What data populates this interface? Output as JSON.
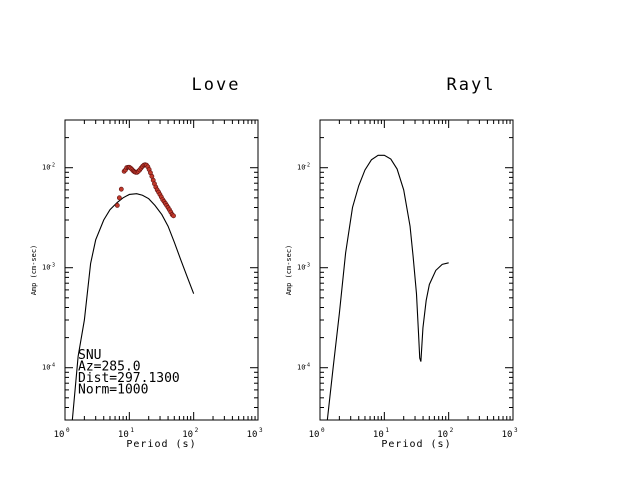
{
  "chart_data": [
    {
      "type": "line",
      "title": "Love",
      "xlabel": "Period (s)",
      "ylabel": "Amp (cm-sec)",
      "x_scale": "log",
      "y_scale": "log",
      "xlim": [
        1,
        1000
      ],
      "ylim": [
        3e-05,
        0.03
      ],
      "x_ticks": [
        {
          "base": "10",
          "exp": "0"
        },
        {
          "base": "10",
          "exp": "1"
        },
        {
          "base": "10",
          "exp": "2"
        },
        {
          "base": "10",
          "exp": "3"
        }
      ],
      "y_ticks": [
        {
          "base": "10",
          "exp": "-4",
          "value": 0.0001
        },
        {
          "base": "10",
          "exp": "-3",
          "value": 0.001
        },
        {
          "base": "10",
          "exp": "-2",
          "value": 0.01
        }
      ],
      "series": [
        {
          "kind": "line",
          "color": "#000000",
          "x": [
            1.1,
            1.3,
            1.6,
            2.0,
            2.5,
            3.0,
            4.0,
            5.0,
            6.5,
            8.0,
            10.0,
            13.0,
            16.0,
            20.0,
            25.0,
            32.0,
            40.0,
            50.0,
            63.0,
            80.0,
            100.0
          ],
          "y": [
            3e-05,
            3e-05,
            0.00013,
            0.0003,
            0.0011,
            0.0019,
            0.003,
            0.0038,
            0.0045,
            0.005,
            0.0054,
            0.0055,
            0.0053,
            0.0049,
            0.0042,
            0.0034,
            0.0026,
            0.0018,
            0.0012,
            0.0008,
            0.00055
          ]
        },
        {
          "kind": "scatter",
          "color": "#c0392b",
          "x": [
            6.5,
            7.0,
            7.5,
            8.3,
            8.7,
            9.1,
            9.6,
            10.0,
            10.5,
            11.0,
            11.5,
            12.0,
            12.6,
            13.2,
            13.8,
            14.5,
            15.2,
            16.0,
            16.8,
            17.6,
            18.5,
            19.4,
            20.3,
            21.3,
            22.4,
            23.5,
            24.6,
            25.8,
            27.1,
            28.5,
            29.9,
            31.4,
            33.0,
            34.6,
            36.3,
            38.1,
            40.0,
            42.0,
            44.1,
            46.3,
            48.6
          ],
          "y": [
            0.0042,
            0.005,
            0.0061,
            0.0092,
            0.0095,
            0.01,
            0.0101,
            0.0101,
            0.0099,
            0.0096,
            0.0093,
            0.0091,
            0.009,
            0.009,
            0.0092,
            0.0095,
            0.0099,
            0.0103,
            0.0106,
            0.0107,
            0.0106,
            0.0102,
            0.0096,
            0.0089,
            0.0082,
            0.0075,
            0.0069,
            0.0064,
            0.006,
            0.0057,
            0.0054,
            0.0051,
            0.0048,
            0.0046,
            0.0044,
            0.0042,
            0.004,
            0.0038,
            0.0036,
            0.0034,
            0.0033
          ]
        }
      ],
      "annotations": [
        "SNU",
        "Az=285.0",
        "Dist=297.1300",
        "Norm=1000"
      ]
    },
    {
      "type": "line",
      "title": "Rayl",
      "xlabel": "Period (s)",
      "ylabel": "Amp (cm-sec)",
      "x_scale": "log",
      "y_scale": "log",
      "xlim": [
        1,
        1000
      ],
      "ylim": [
        3e-05,
        0.03
      ],
      "x_ticks": [
        {
          "base": "10",
          "exp": "0"
        },
        {
          "base": "10",
          "exp": "1"
        },
        {
          "base": "10",
          "exp": "2"
        },
        {
          "base": "10",
          "exp": "3"
        }
      ],
      "y_ticks": [
        {
          "base": "10",
          "exp": "-4",
          "value": 0.0001
        },
        {
          "base": "10",
          "exp": "-3",
          "value": 0.001
        },
        {
          "base": "10",
          "exp": "-2",
          "value": 0.01
        }
      ],
      "series": [
        {
          "kind": "line",
          "color": "#000000",
          "x": [
            1.1,
            1.3,
            1.6,
            2.0,
            2.5,
            3.2,
            4.0,
            5.0,
            6.3,
            8.0,
            10.0,
            12.6,
            15.8,
            20.0,
            25.1,
            28.0,
            31.6,
            34.0,
            35.5,
            37.0,
            39.8,
            44.7,
            50.1,
            63.1,
            79.4,
            100.0
          ],
          "y": [
            3e-05,
            3e-05,
            0.0001,
            0.00035,
            0.0014,
            0.004,
            0.0066,
            0.0095,
            0.012,
            0.0133,
            0.0133,
            0.0122,
            0.0097,
            0.006,
            0.0026,
            0.0013,
            0.00055,
            0.00022,
            0.000125,
            0.000115,
            0.00025,
            0.00047,
            0.00068,
            0.00094,
            0.00108,
            0.00112
          ]
        }
      ]
    }
  ]
}
